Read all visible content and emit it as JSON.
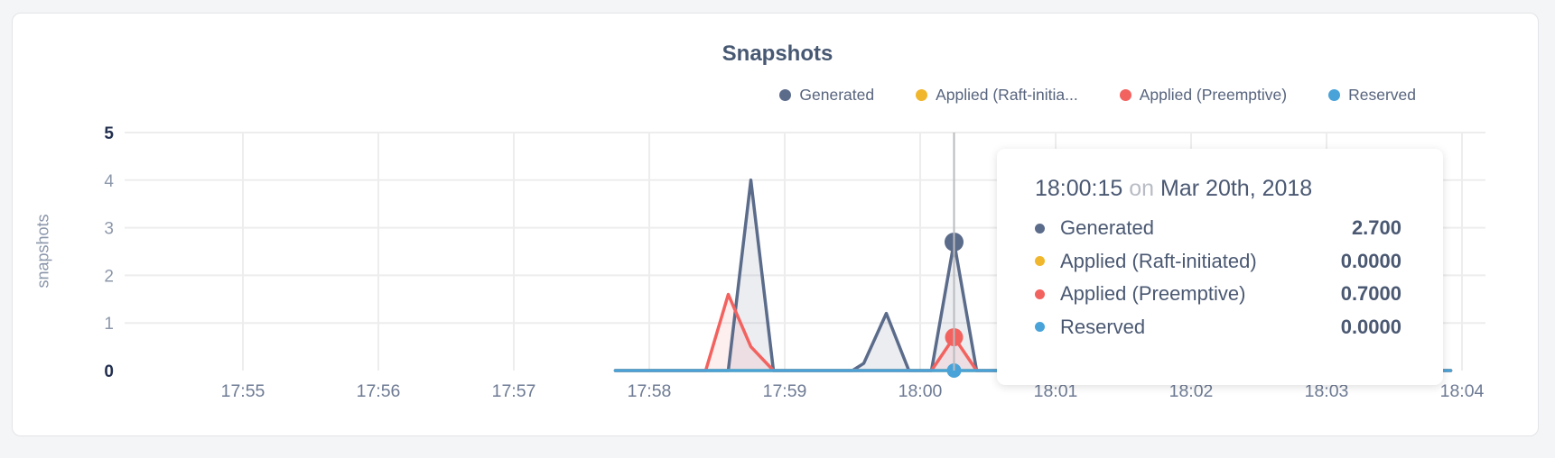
{
  "chart": {
    "title": "Snapshots",
    "ylabel": "snapshots"
  },
  "chart_data": {
    "type": "area",
    "title": "Snapshots",
    "xlabel": "",
    "ylabel": "snapshots",
    "grid": true,
    "legend_position": "top-right",
    "ylim": [
      0,
      5
    ],
    "y_ticks": [
      0,
      1,
      2,
      3,
      4,
      5
    ],
    "y_ticks_emphasized": [
      0,
      5
    ],
    "x_tick_labels": [
      "17:55",
      "17:56",
      "17:57",
      "17:58",
      "17:59",
      "18:00",
      "18:01",
      "18:02",
      "18:03",
      "18:04"
    ],
    "x_tick_minutes": [
      0,
      1,
      2,
      3,
      4,
      5,
      6,
      7,
      8,
      9
    ],
    "x_axis_start": "17:55",
    "time_unit": "seconds after 17:55",
    "series": [
      {
        "name": "Generated",
        "legend_label": "Generated",
        "color": "#5b6b8a",
        "fill": "rgba(91,107,138,0.12)",
        "points": [
          [
            165,
            0
          ],
          [
            215,
            0
          ],
          [
            225,
            4.0
          ],
          [
            235,
            0
          ],
          [
            270,
            0
          ],
          [
            275,
            0.15
          ],
          [
            285,
            1.2
          ],
          [
            295,
            0
          ],
          [
            305,
            0
          ],
          [
            315,
            2.7
          ],
          [
            325,
            0
          ],
          [
            535,
            0
          ]
        ]
      },
      {
        "name": "Applied (Raft-initiated)",
        "legend_label": "Applied (Raft-initia...",
        "color": "#f0b72d",
        "fill": null,
        "points": [
          [
            165,
            0
          ],
          [
            535,
            0
          ]
        ]
      },
      {
        "name": "Applied (Preemptive)",
        "legend_label": "Applied (Preemptive)",
        "color": "#f2625f",
        "fill": "rgba(242,98,95,0.10)",
        "points": [
          [
            165,
            0
          ],
          [
            205,
            0
          ],
          [
            215,
            1.6
          ],
          [
            225,
            0.5
          ],
          [
            235,
            0
          ],
          [
            305,
            0
          ],
          [
            315,
            0.7
          ],
          [
            325,
            0
          ],
          [
            535,
            0
          ]
        ]
      },
      {
        "name": "Reserved",
        "legend_label": "Reserved",
        "color": "#49a3d9",
        "fill": null,
        "points": [
          [
            165,
            0
          ],
          [
            535,
            0
          ]
        ]
      }
    ],
    "hover": {
      "time_seconds": 315,
      "time_label": "18:00:15",
      "date_label": "Mar 20th, 2018",
      "markers": [
        {
          "series": "Generated",
          "value": 2.7,
          "radius": 10.5
        },
        {
          "series": "Applied (Preemptive)",
          "value": 0.7,
          "radius": 10
        },
        {
          "series": "Reserved",
          "value": 0,
          "radius": 8
        }
      ]
    }
  },
  "tooltip": {
    "time": "18:00:15",
    "connector": "on",
    "date": "Mar 20th, 2018",
    "rows": [
      {
        "label": "Generated",
        "value": "2.700",
        "color": "#5b6b8a"
      },
      {
        "label": "Applied (Raft-initiated)",
        "value": "0.0000",
        "color": "#f0b72d"
      },
      {
        "label": "Applied (Preemptive)",
        "value": "0.7000",
        "color": "#f2625f"
      },
      {
        "label": "Reserved",
        "value": "0.0000",
        "color": "#49a3d9"
      }
    ]
  },
  "colors": {
    "page_background": "#f4f5f6",
    "panel_background": "#ffffff",
    "title_text": "#475872",
    "gridline": "#ededee",
    "crosshair": "#babbbe",
    "x_tick_text": "#6e7b94",
    "y_tick_text": "#8d98ab",
    "y_tick_text_emphasized": "#23304f"
  }
}
